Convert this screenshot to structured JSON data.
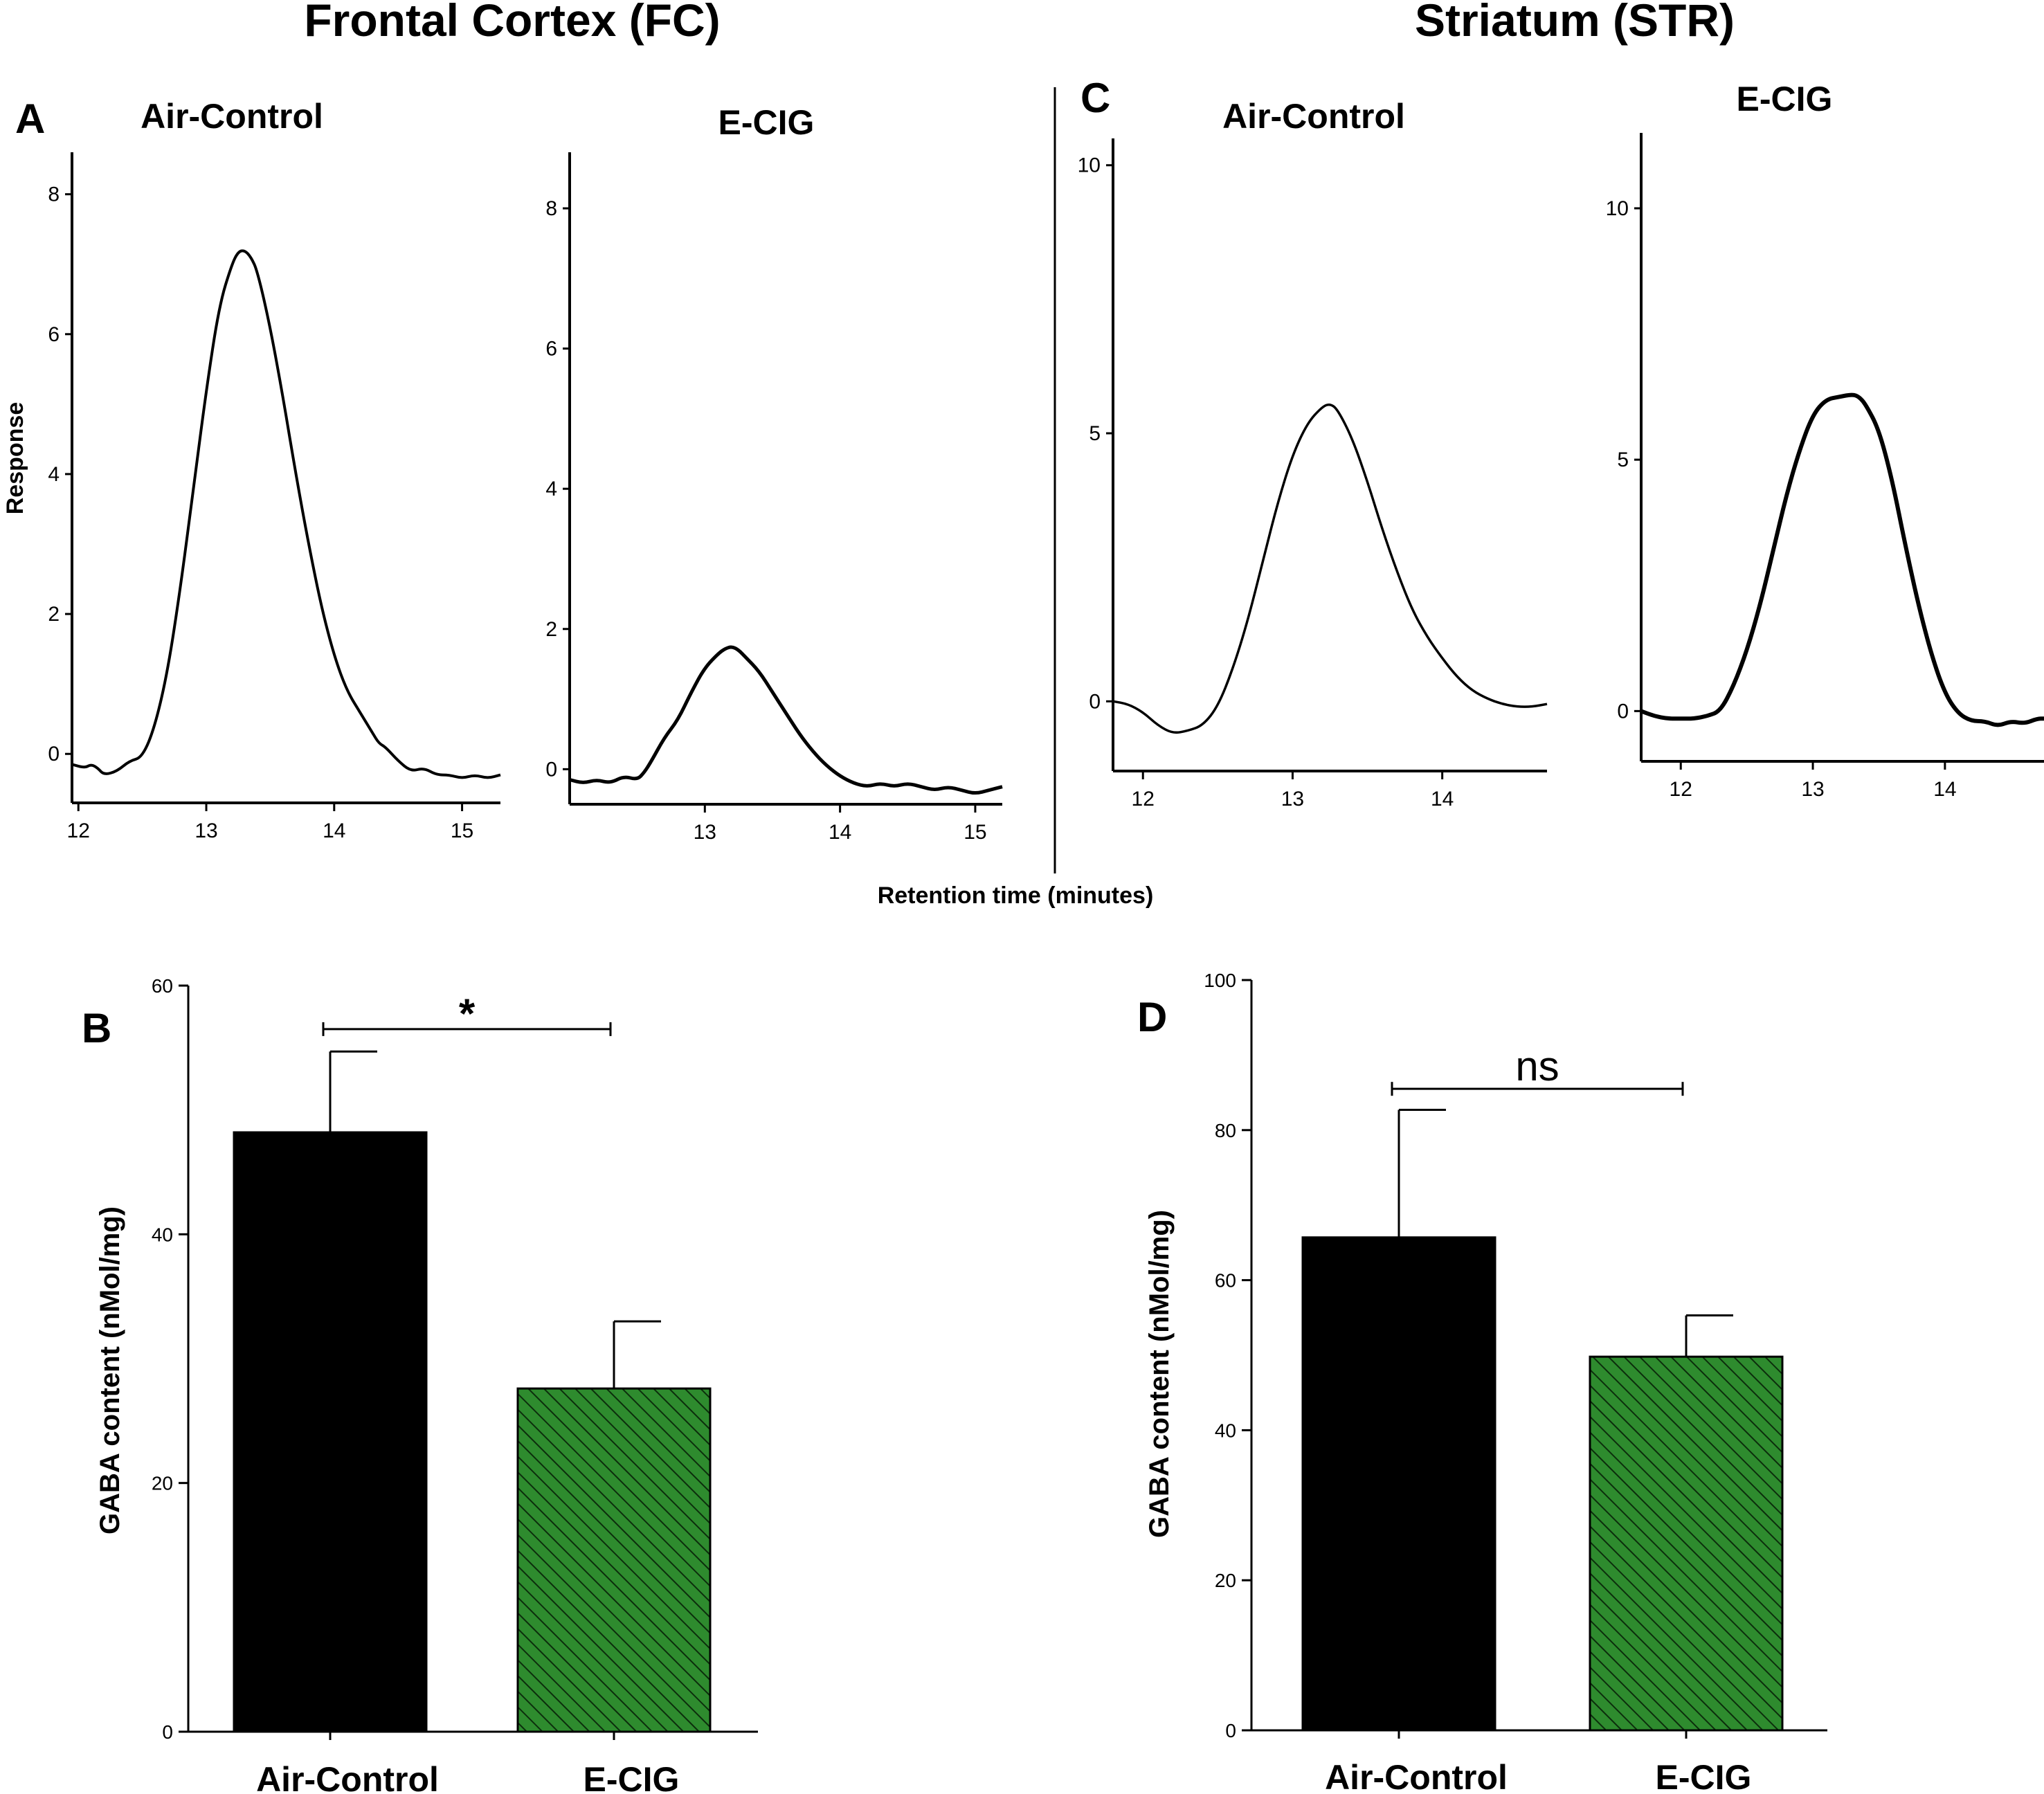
{
  "sections": {
    "left": "Frontal Cortex (FC)",
    "right": "Striatum (STR)"
  },
  "shared_x_label": "Retention time (minutes)",
  "chart_data": [
    {
      "id": "A",
      "type": "line",
      "panel_letter": "A",
      "title": "Air-Control",
      "ylabel": "Response",
      "xlim": [
        11.95,
        15.3
      ],
      "ylim": [
        -0.7,
        8.6
      ],
      "xticks": [
        12,
        13,
        14,
        15
      ],
      "yticks": [
        0,
        2,
        4,
        6,
        8
      ],
      "series": [
        {
          "name": "Air-Control",
          "x": [
            11.95,
            12.05,
            12.1,
            12.15,
            12.2,
            12.3,
            12.4,
            12.5,
            12.6,
            12.7,
            12.8,
            12.9,
            13.0,
            13.1,
            13.2,
            13.25,
            13.3,
            13.35,
            13.4,
            13.5,
            13.6,
            13.7,
            13.8,
            13.9,
            14.0,
            14.1,
            14.2,
            14.3,
            14.35,
            14.4,
            14.5,
            14.6,
            14.7,
            14.8,
            14.9,
            15.0,
            15.1,
            15.2,
            15.3
          ],
          "y": [
            -0.15,
            -0.2,
            -0.15,
            -0.2,
            -0.3,
            -0.25,
            -0.1,
            -0.05,
            0.4,
            1.2,
            2.4,
            3.8,
            5.2,
            6.4,
            7.0,
            7.18,
            7.2,
            7.1,
            6.9,
            6.1,
            5.1,
            4.0,
            3.0,
            2.1,
            1.4,
            0.9,
            0.6,
            0.3,
            0.15,
            0.1,
            -0.1,
            -0.25,
            -0.2,
            -0.3,
            -0.3,
            -0.35,
            -0.3,
            -0.35,
            -0.3
          ]
        }
      ]
    },
    {
      "id": "A2",
      "type": "line",
      "title": "E-CIG",
      "xlim": [
        12.0,
        15.2
      ],
      "ylim": [
        -0.5,
        8.8
      ],
      "xticks": [
        13,
        14,
        15
      ],
      "yticks": [
        0,
        2,
        4,
        6,
        8
      ],
      "series": [
        {
          "name": "E-CIG",
          "x": [
            12.0,
            12.1,
            12.2,
            12.3,
            12.4,
            12.5,
            12.55,
            12.6,
            12.7,
            12.8,
            12.9,
            13.0,
            13.1,
            13.15,
            13.2,
            13.25,
            13.3,
            13.4,
            13.5,
            13.6,
            13.7,
            13.8,
            13.9,
            14.0,
            14.1,
            14.2,
            14.3,
            14.4,
            14.5,
            14.6,
            14.7,
            14.8,
            14.9,
            15.0,
            15.1,
            15.2
          ],
          "y": [
            -0.15,
            -0.2,
            -0.15,
            -0.2,
            -0.1,
            -0.15,
            -0.05,
            0.1,
            0.45,
            0.7,
            1.1,
            1.45,
            1.65,
            1.72,
            1.75,
            1.7,
            1.6,
            1.4,
            1.1,
            0.8,
            0.5,
            0.25,
            0.05,
            -0.1,
            -0.2,
            -0.25,
            -0.2,
            -0.25,
            -0.2,
            -0.25,
            -0.3,
            -0.25,
            -0.3,
            -0.35,
            -0.3,
            -0.25
          ]
        }
      ]
    },
    {
      "id": "C",
      "type": "line",
      "panel_letter": "C",
      "title": "Air-Control",
      "xlim": [
        11.8,
        14.7
      ],
      "ylim": [
        -1.3,
        10.5
      ],
      "xticks": [
        12,
        13,
        14
      ],
      "yticks": [
        0,
        5,
        10
      ],
      "series": [
        {
          "name": "Air-Control",
          "x": [
            11.8,
            11.9,
            12.0,
            12.1,
            12.2,
            12.3,
            12.4,
            12.5,
            12.6,
            12.7,
            12.8,
            12.9,
            13.0,
            13.1,
            13.2,
            13.25,
            13.3,
            13.4,
            13.5,
            13.6,
            13.7,
            13.8,
            13.9,
            14.0,
            14.1,
            14.2,
            14.3,
            14.4,
            14.5,
            14.6,
            14.7
          ],
          "y": [
            0.0,
            -0.05,
            -0.2,
            -0.45,
            -0.6,
            -0.55,
            -0.45,
            -0.1,
            0.6,
            1.5,
            2.6,
            3.7,
            4.6,
            5.2,
            5.5,
            5.55,
            5.45,
            4.9,
            4.1,
            3.2,
            2.4,
            1.7,
            1.2,
            0.8,
            0.45,
            0.2,
            0.05,
            -0.05,
            -0.1,
            -0.1,
            -0.05
          ]
        }
      ]
    },
    {
      "id": "C2",
      "type": "line",
      "title": "E-CIG",
      "xlim": [
        11.7,
        14.75
      ],
      "ylim": [
        -1.0,
        11.5
      ],
      "xticks": [
        12,
        13,
        14
      ],
      "yticks": [
        0,
        5,
        10
      ],
      "series": [
        {
          "name": "E-CIG",
          "x": [
            11.7,
            11.8,
            11.9,
            12.0,
            12.1,
            12.2,
            12.3,
            12.4,
            12.5,
            12.6,
            12.7,
            12.8,
            12.9,
            13.0,
            13.1,
            13.2,
            13.3,
            13.35,
            13.4,
            13.5,
            13.6,
            13.7,
            13.8,
            13.9,
            14.0,
            14.1,
            14.2,
            14.3,
            14.4,
            14.5,
            14.6,
            14.7,
            14.75
          ],
          "y": [
            0.0,
            -0.1,
            -0.15,
            -0.15,
            -0.15,
            -0.1,
            0.0,
            0.5,
            1.2,
            2.1,
            3.2,
            4.3,
            5.2,
            5.9,
            6.2,
            6.25,
            6.3,
            6.25,
            6.1,
            5.6,
            4.6,
            3.3,
            2.1,
            1.1,
            0.35,
            -0.05,
            -0.2,
            -0.2,
            -0.3,
            -0.2,
            -0.25,
            -0.15,
            -0.15
          ]
        }
      ]
    },
    {
      "id": "B",
      "type": "bar",
      "panel_letter": "B",
      "categories": [
        "Air-Control",
        "E-CIG"
      ],
      "values": [
        48.2,
        27.6
      ],
      "errors": [
        6.5,
        5.4
      ],
      "colors": [
        "#000000",
        "#2e8b2e"
      ],
      "patterns": [
        "solid",
        "hatched"
      ],
      "ylabel": "GABA content  (nMol/mg)",
      "ylim": [
        0,
        60
      ],
      "yticks": [
        0,
        20,
        40,
        60
      ],
      "significance": {
        "label": "*",
        "y": 56.5
      }
    },
    {
      "id": "D",
      "type": "bar",
      "panel_letter": "D",
      "categories": [
        "Air-Control",
        "E-CIG"
      ],
      "values": [
        65.7,
        49.8
      ],
      "errors": [
        17.0,
        5.5
      ],
      "colors": [
        "#000000",
        "#2e8b2e"
      ],
      "patterns": [
        "solid",
        "hatched"
      ],
      "ylabel": "GABA content  (nMol/mg)",
      "ylim": [
        0,
        100
      ],
      "yticks": [
        0,
        20,
        40,
        60,
        80,
        100
      ],
      "significance": {
        "label": "ns",
        "y": 85.5
      }
    }
  ]
}
